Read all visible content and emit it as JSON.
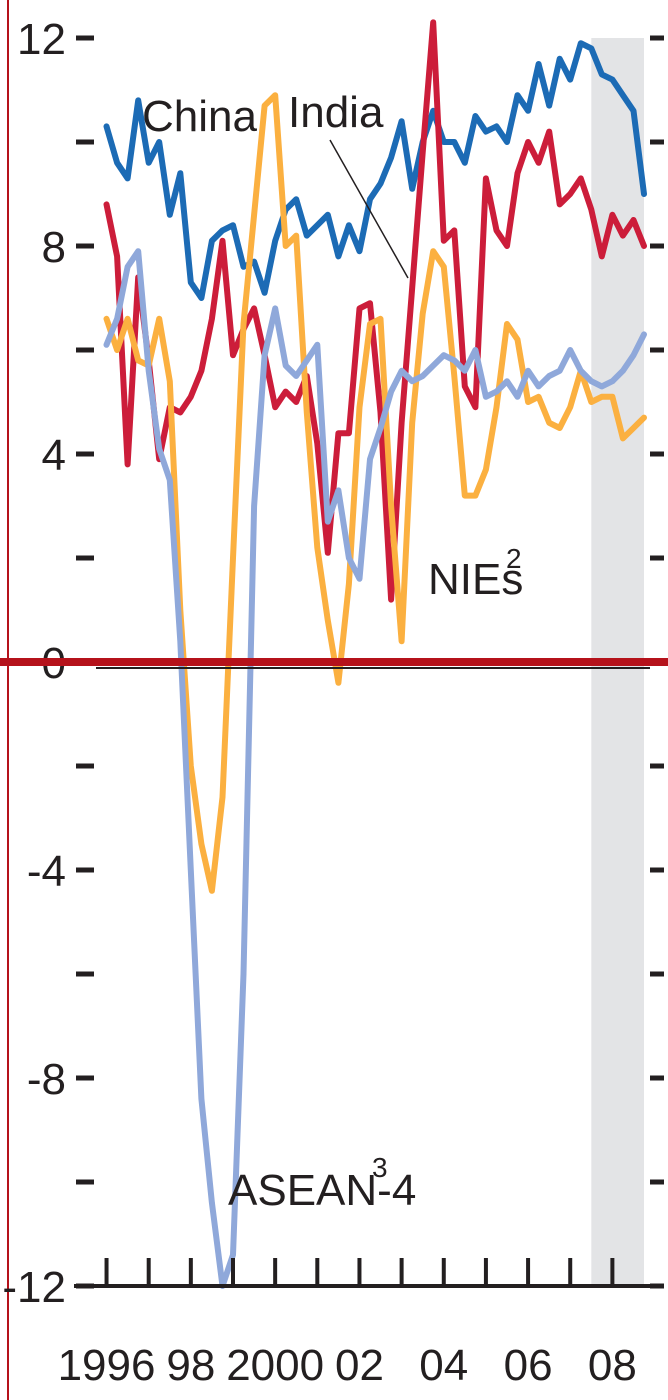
{
  "chart_data": {
    "type": "line",
    "title": "",
    "xlabel": "",
    "ylabel": "",
    "ylim": [
      -12,
      12
    ],
    "xlim": [
      1995.75,
      2008.75
    ],
    "y_ticks": [
      -12,
      -8,
      -4,
      0,
      4,
      8,
      12
    ],
    "y_tick_labels": [
      "-12",
      "-8",
      "-4",
      "0",
      "4",
      "8",
      "12"
    ],
    "y_minor_ticks": [
      -10,
      -6,
      -2,
      2,
      6,
      10
    ],
    "x_ticks": [
      1996,
      1997,
      1998,
      1999,
      2000,
      2001,
      2002,
      2003,
      2004,
      2005,
      2006,
      2007,
      2008
    ],
    "x_tick_labels": [
      {
        "x": 1996,
        "label": "1996"
      },
      {
        "x": 1998,
        "label": "98"
      },
      {
        "x": 2000,
        "label": "2000"
      },
      {
        "x": 2002,
        "label": "02"
      },
      {
        "x": 2004,
        "label": "04"
      },
      {
        "x": 2006,
        "label": "06"
      },
      {
        "x": 2008,
        "label": "08"
      }
    ],
    "shaded_region": {
      "from": 2007.5,
      "to": 2008.75,
      "color": "#e3e4e6"
    },
    "zero_line_color": "#b5121b",
    "grid": false,
    "series": [
      {
        "name": "China",
        "color": "#1c6bb5",
        "points": [
          [
            1996.0,
            10.3
          ],
          [
            1996.25,
            9.6
          ],
          [
            1996.5,
            9.3
          ],
          [
            1996.75,
            10.8
          ],
          [
            1997.0,
            9.6
          ],
          [
            1997.25,
            10.0
          ],
          [
            1997.5,
            8.6
          ],
          [
            1997.75,
            9.4
          ],
          [
            1998.0,
            7.3
          ],
          [
            1998.25,
            7.0
          ],
          [
            1998.5,
            8.1
          ],
          [
            1998.75,
            8.3
          ],
          [
            1999.0,
            8.4
          ],
          [
            1999.25,
            7.6
          ],
          [
            1999.5,
            7.7
          ],
          [
            1999.75,
            7.1
          ],
          [
            2000.0,
            8.1
          ],
          [
            2000.25,
            8.7
          ],
          [
            2000.5,
            8.9
          ],
          [
            2000.75,
            8.2
          ],
          [
            2001.0,
            8.4
          ],
          [
            2001.25,
            8.6
          ],
          [
            2001.5,
            7.8
          ],
          [
            2001.75,
            8.4
          ],
          [
            2002.0,
            7.9
          ],
          [
            2002.25,
            8.9
          ],
          [
            2002.5,
            9.2
          ],
          [
            2002.75,
            9.7
          ],
          [
            2003.0,
            10.4
          ],
          [
            2003.25,
            9.1
          ],
          [
            2003.5,
            10.0
          ],
          [
            2003.75,
            10.6
          ],
          [
            2004.0,
            10.0
          ],
          [
            2004.25,
            10.0
          ],
          [
            2004.5,
            9.6
          ],
          [
            2004.75,
            10.5
          ],
          [
            2005.0,
            10.2
          ],
          [
            2005.25,
            10.3
          ],
          [
            2005.5,
            10.0
          ],
          [
            2005.75,
            10.9
          ],
          [
            2006.0,
            10.6
          ],
          [
            2006.25,
            11.5
          ],
          [
            2006.5,
            10.7
          ],
          [
            2006.75,
            11.6
          ],
          [
            2007.0,
            11.2
          ],
          [
            2007.25,
            11.9
          ],
          [
            2007.5,
            11.8
          ],
          [
            2007.75,
            11.3
          ],
          [
            2008.0,
            11.2
          ],
          [
            2008.25,
            10.9
          ],
          [
            2008.5,
            10.6
          ],
          [
            2008.75,
            9.0
          ]
        ]
      },
      {
        "name": "India",
        "color": "#cc1d3a",
        "points": [
          [
            1996.0,
            8.8
          ],
          [
            1996.25,
            7.8
          ],
          [
            1996.5,
            3.8
          ],
          [
            1996.75,
            7.4
          ],
          [
            1997.0,
            5.8
          ],
          [
            1997.25,
            3.9
          ],
          [
            1997.5,
            4.9
          ],
          [
            1997.75,
            4.8
          ],
          [
            1998.0,
            5.1
          ],
          [
            1998.25,
            5.6
          ],
          [
            1998.5,
            6.6
          ],
          [
            1998.75,
            8.1
          ],
          [
            1999.0,
            5.9
          ],
          [
            1999.25,
            6.4
          ],
          [
            1999.5,
            6.8
          ],
          [
            1999.75,
            5.9
          ],
          [
            2000.0,
            4.9
          ],
          [
            2000.25,
            5.2
          ],
          [
            2000.5,
            5.0
          ],
          [
            2000.75,
            5.5
          ],
          [
            2001.0,
            4.2
          ],
          [
            2001.25,
            2.1
          ],
          [
            2001.5,
            4.4
          ],
          [
            2001.75,
            4.4
          ],
          [
            2002.0,
            6.8
          ],
          [
            2002.25,
            6.9
          ],
          [
            2002.5,
            4.8
          ],
          [
            2002.75,
            1.2
          ],
          [
            2003.0,
            4.6
          ],
          [
            2003.25,
            7.2
          ],
          [
            2003.5,
            9.8
          ],
          [
            2003.75,
            12.3
          ],
          [
            2004.0,
            8.1
          ],
          [
            2004.25,
            8.3
          ],
          [
            2004.5,
            5.3
          ],
          [
            2004.75,
            4.9
          ],
          [
            2005.0,
            9.3
          ],
          [
            2005.25,
            8.3
          ],
          [
            2005.5,
            8.0
          ],
          [
            2005.75,
            9.4
          ],
          [
            2006.0,
            10.0
          ],
          [
            2006.25,
            9.6
          ],
          [
            2006.5,
            10.2
          ],
          [
            2006.75,
            8.8
          ],
          [
            2007.0,
            9.0
          ],
          [
            2007.25,
            9.3
          ],
          [
            2007.5,
            8.7
          ],
          [
            2007.75,
            7.8
          ],
          [
            2008.0,
            8.6
          ],
          [
            2008.25,
            8.2
          ],
          [
            2008.5,
            8.5
          ],
          [
            2008.75,
            8.0
          ]
        ]
      },
      {
        "name": "NIEs",
        "label_suffix": "2",
        "color": "#fbb040",
        "points": [
          [
            1996.0,
            6.6
          ],
          [
            1996.25,
            6.0
          ],
          [
            1996.5,
            6.6
          ],
          [
            1996.75,
            5.8
          ],
          [
            1997.0,
            5.7
          ],
          [
            1997.25,
            6.6
          ],
          [
            1997.5,
            5.4
          ],
          [
            1997.75,
            1.0
          ],
          [
            1998.0,
            -2.0
          ],
          [
            1998.25,
            -3.5
          ],
          [
            1998.5,
            -4.4
          ],
          [
            1998.75,
            -2.6
          ],
          [
            1999.0,
            2.0
          ],
          [
            1999.25,
            6.5
          ],
          [
            1999.5,
            8.6
          ],
          [
            1999.75,
            10.7
          ],
          [
            2000.0,
            10.9
          ],
          [
            2000.25,
            8.0
          ],
          [
            2000.5,
            8.2
          ],
          [
            2000.75,
            4.8
          ],
          [
            2001.0,
            2.2
          ],
          [
            2001.25,
            0.8
          ],
          [
            2001.5,
            -0.4
          ],
          [
            2001.75,
            1.5
          ],
          [
            2002.0,
            4.9
          ],
          [
            2002.25,
            6.5
          ],
          [
            2002.5,
            6.6
          ],
          [
            2002.75,
            3.0
          ],
          [
            2003.0,
            0.4
          ],
          [
            2003.25,
            4.6
          ],
          [
            2003.5,
            6.7
          ],
          [
            2003.75,
            7.9
          ],
          [
            2004.0,
            7.6
          ],
          [
            2004.25,
            5.5
          ],
          [
            2004.5,
            3.2
          ],
          [
            2004.75,
            3.2
          ],
          [
            2005.0,
            3.7
          ],
          [
            2005.25,
            4.9
          ],
          [
            2005.5,
            6.5
          ],
          [
            2005.75,
            6.2
          ],
          [
            2006.0,
            5.0
          ],
          [
            2006.25,
            5.1
          ],
          [
            2006.5,
            4.6
          ],
          [
            2006.75,
            4.5
          ],
          [
            2007.0,
            4.9
          ],
          [
            2007.25,
            5.6
          ],
          [
            2007.5,
            5.0
          ],
          [
            2007.75,
            5.1
          ],
          [
            2008.0,
            5.1
          ],
          [
            2008.25,
            4.3
          ],
          [
            2008.5,
            4.5
          ],
          [
            2008.75,
            4.7
          ]
        ]
      },
      {
        "name": "ASEAN-4",
        "label_suffix": "3",
        "color": "#8fa8da",
        "points": [
          [
            1996.0,
            6.1
          ],
          [
            1996.25,
            6.6
          ],
          [
            1996.5,
            7.6
          ],
          [
            1996.75,
            7.9
          ],
          [
            1997.0,
            5.6
          ],
          [
            1997.25,
            4.1
          ],
          [
            1997.5,
            3.5
          ],
          [
            1997.75,
            0.4
          ],
          [
            1998.0,
            -4.0
          ],
          [
            1998.25,
            -8.4
          ],
          [
            1998.5,
            -10.4
          ],
          [
            1998.75,
            -12.0
          ],
          [
            1999.0,
            -11.4
          ],
          [
            1999.25,
            -6.0
          ],
          [
            1999.5,
            3.0
          ],
          [
            1999.75,
            5.9
          ],
          [
            2000.0,
            6.8
          ],
          [
            2000.25,
            5.7
          ],
          [
            2000.5,
            5.5
          ],
          [
            2000.75,
            5.8
          ],
          [
            2001.0,
            6.1
          ],
          [
            2001.25,
            2.7
          ],
          [
            2001.5,
            3.3
          ],
          [
            2001.75,
            2.0
          ],
          [
            2002.0,
            1.6
          ],
          [
            2002.25,
            3.9
          ],
          [
            2002.5,
            4.5
          ],
          [
            2002.75,
            5.2
          ],
          [
            2003.0,
            5.6
          ],
          [
            2003.25,
            5.4
          ],
          [
            2003.5,
            5.5
          ],
          [
            2003.75,
            5.7
          ],
          [
            2004.0,
            5.9
          ],
          [
            2004.25,
            5.8
          ],
          [
            2004.5,
            5.6
          ],
          [
            2004.75,
            6.0
          ],
          [
            2005.0,
            5.1
          ],
          [
            2005.25,
            5.2
          ],
          [
            2005.5,
            5.4
          ],
          [
            2005.75,
            5.1
          ],
          [
            2006.0,
            5.6
          ],
          [
            2006.25,
            5.3
          ],
          [
            2006.5,
            5.5
          ],
          [
            2006.75,
            5.6
          ],
          [
            2007.0,
            6.0
          ],
          [
            2007.25,
            5.6
          ],
          [
            2007.5,
            5.4
          ],
          [
            2007.75,
            5.3
          ],
          [
            2008.0,
            5.4
          ],
          [
            2008.25,
            5.6
          ],
          [
            2008.5,
            5.9
          ],
          [
            2008.75,
            6.3
          ]
        ]
      }
    ]
  }
}
